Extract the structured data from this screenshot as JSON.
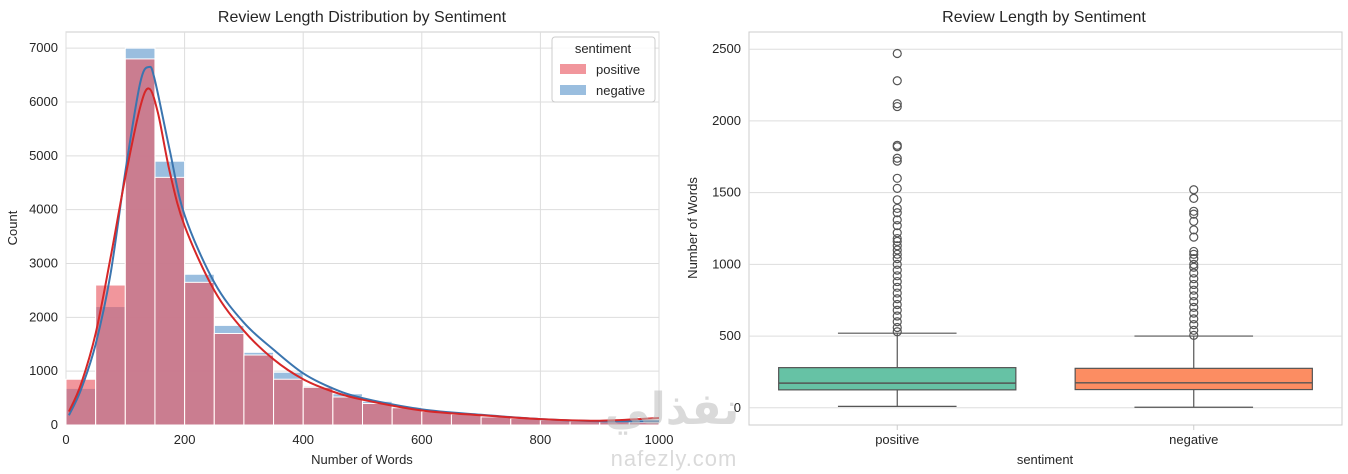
{
  "watermark": {
    "brand_arabic": "نفذلي",
    "brand_latin": "nafezly.com"
  },
  "chart_data": [
    {
      "type": "histogram",
      "title": "Review Length Distribution by Sentiment",
      "xlabel": "Number of Words",
      "ylabel": "Count",
      "xlim": [
        0,
        1000
      ],
      "ylim": [
        0,
        7300
      ],
      "xticks": [
        0,
        200,
        400,
        600,
        800,
        1000
      ],
      "yticks": [
        0,
        1000,
        2000,
        3000,
        4000,
        5000,
        6000,
        7000
      ],
      "grid": true,
      "legend": {
        "title": "sentiment",
        "placement": "top-right"
      },
      "bins": [
        0,
        50,
        100,
        150,
        200,
        250,
        300,
        350,
        400,
        450,
        500,
        550,
        600,
        650,
        700,
        750,
        800,
        850,
        900,
        950,
        1000
      ],
      "series": [
        {
          "name": "positive",
          "color": "#e8565f",
          "counts": [
            850,
            2600,
            6800,
            4600,
            2650,
            1700,
            1300,
            850,
            700,
            520,
            400,
            320,
            250,
            200,
            150,
            120,
            90,
            70,
            60,
            50
          ],
          "kde": {
            "x": [
              5,
              25,
              50,
              75,
              100,
              125,
              140,
              155,
              175,
              200,
              250,
              300,
              350,
              400,
              450,
              500,
              600,
              700,
              800,
              900,
              1000
            ],
            "y": [
              250,
              750,
              1700,
              3100,
              4600,
              5900,
              6250,
              5800,
              4700,
              3700,
              2500,
              1750,
              1220,
              850,
              620,
              470,
              270,
              180,
              110,
              80,
              130
            ]
          }
        },
        {
          "name": "negative",
          "color": "#8fb7dc",
          "counts": [
            680,
            2200,
            7000,
            4900,
            2800,
            1850,
            1350,
            980,
            720,
            580,
            440,
            340,
            270,
            210,
            165,
            130,
            100,
            80,
            60,
            50
          ],
          "kde": {
            "x": [
              5,
              25,
              50,
              75,
              100,
              125,
              140,
              150,
              175,
              200,
              250,
              300,
              350,
              400,
              450,
              500,
              600,
              700,
              800,
              900,
              1000
            ],
            "y": [
              180,
              650,
              1500,
              2800,
              4700,
              6350,
              6650,
              6400,
              5100,
              3900,
              2650,
              1900,
              1400,
              960,
              680,
              500,
              290,
              190,
              110,
              70,
              70
            ]
          }
        }
      ]
    },
    {
      "type": "box",
      "title": "Review Length by Sentiment",
      "xlabel": "sentiment",
      "ylabel": "Number of Words",
      "ylim": [
        -120,
        2620
      ],
      "yticks": [
        0,
        500,
        1000,
        1500,
        2000,
        2500
      ],
      "grid": true,
      "categories": [
        "positive",
        "negative"
      ],
      "boxes": [
        {
          "name": "positive",
          "color": "#66c2a5",
          "whisker_low": 10,
          "q1": 125,
          "median": 172,
          "q3": 280,
          "whisker_high": 520,
          "outliers": [
            530,
            560,
            600,
            640,
            680,
            720,
            760,
            800,
            840,
            880,
            920,
            960,
            1000,
            1040,
            1070,
            1100,
            1130,
            1160,
            1180,
            1220,
            1270,
            1310,
            1360,
            1390,
            1450,
            1530,
            1600,
            1720,
            1740,
            1820,
            1830,
            2100,
            2120,
            2280,
            2470
          ]
        },
        {
          "name": "negative",
          "color": "#fc8d62",
          "whisker_low": 4,
          "q1": 127,
          "median": 174,
          "q3": 275,
          "whisker_high": 500,
          "outliers": [
            505,
            540,
            580,
            620,
            660,
            700,
            740,
            780,
            820,
            860,
            900,
            940,
            980,
            1000,
            1040,
            1070,
            1090,
            1190,
            1240,
            1300,
            1350,
            1370,
            1460,
            1520
          ]
        }
      ]
    }
  ]
}
